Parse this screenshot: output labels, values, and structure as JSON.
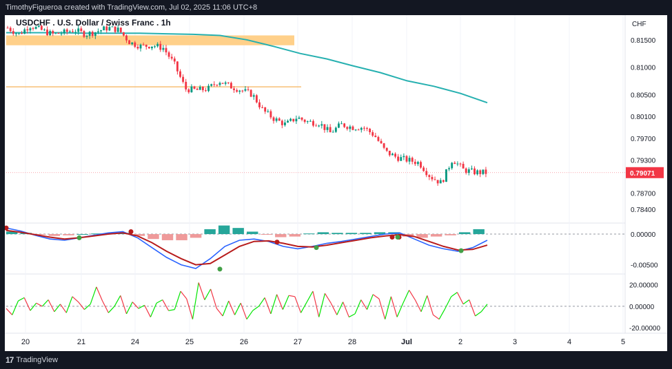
{
  "header": {
    "attribution": "TimothyFigueroa created with TradingView.com, Jul 02, 2025 11:06 UTC+8"
  },
  "footer": {
    "brand": "TradingView",
    "logo_icon": "tradingview-logo-icon"
  },
  "chart_data": {
    "type": "candlestick",
    "title": "USDCHF . U.S. Dollar / Swiss Franc . 1h",
    "currency_label": "CHF",
    "x_labels": [
      "20",
      "21",
      "24",
      "25",
      "26",
      "27",
      "28",
      "Jul",
      "2",
      "3",
      "4",
      "5"
    ],
    "price_axis": {
      "ticks": [
        "0.81500",
        "0.81000",
        "0.80500",
        "0.80100",
        "0.79700",
        "0.79300",
        "0.78700",
        "0.78400"
      ],
      "last_price": "0.79071",
      "ylim": [
        0.7825,
        0.8185
      ]
    },
    "close_path": [
      [
        "20",
        0.8172
      ],
      [
        "20",
        0.816
      ],
      [
        "20",
        0.8176
      ],
      [
        "20",
        0.8168
      ],
      [
        "20",
        0.816
      ],
      [
        "21",
        0.8163
      ],
      [
        "21",
        0.8168
      ],
      [
        "21",
        0.816
      ],
      [
        "21",
        0.8165
      ],
      [
        "21",
        0.8172
      ],
      [
        "24",
        0.8168
      ],
      [
        "24",
        0.8145
      ],
      [
        "24",
        0.8138
      ],
      [
        "24",
        0.814
      ],
      [
        "24",
        0.8135
      ],
      [
        "25",
        0.8105
      ],
      [
        "25",
        0.806
      ],
      [
        "25",
        0.8058
      ],
      [
        "25",
        0.806
      ],
      [
        "25",
        0.8075
      ],
      [
        "26",
        0.8065
      ],
      [
        "26",
        0.8058
      ],
      [
        "26",
        0.805
      ],
      [
        "26",
        0.802
      ],
      [
        "26",
        0.8005
      ],
      [
        "27",
        0.7995
      ],
      [
        "27",
        0.8008
      ],
      [
        "27",
        0.8
      ],
      [
        "27",
        0.7998
      ],
      [
        "27",
        0.798
      ],
      [
        "28",
        0.7995
      ],
      [
        "28",
        0.799
      ],
      [
        "28",
        0.799
      ],
      [
        "28",
        0.7975
      ],
      [
        "28",
        0.7945
      ],
      [
        "Jul",
        0.7935
      ],
      [
        "Jul",
        0.793
      ],
      [
        "Jul",
        0.7925
      ],
      [
        "Jul",
        0.79
      ],
      [
        "Jul",
        0.7888
      ],
      [
        "2",
        0.7932
      ],
      [
        "2",
        0.7912
      ],
      [
        "2",
        0.7908
      ],
      [
        "2",
        0.7907
      ]
    ],
    "moving_average": {
      "color": "#26b0b0",
      "values": [
        0.8163,
        0.8163,
        0.8163,
        0.8162,
        0.8162,
        0.8162,
        0.8161,
        0.816,
        0.8158,
        0.815,
        0.8138,
        0.8125,
        0.8115,
        0.8102,
        0.809,
        0.8075,
        0.8065,
        0.8052,
        0.8035
      ]
    },
    "supply_zone": {
      "from": 0.814,
      "to": 0.8158,
      "color": "#ffd08a"
    },
    "support_line": {
      "value": 0.8064,
      "color": "#f5b35a"
    },
    "macd": {
      "ticks": [
        "0.00000",
        "-0.00500"
      ],
      "ylim": [
        -0.0065,
        0.0018
      ],
      "macd_line": [
        0.001,
        0.0005,
        -0.0002,
        -0.0008,
        -0.001,
        -0.0006,
        -0.0002,
        0.0002,
        0.0004,
        -0.0006,
        -0.0022,
        -0.0038,
        -0.005,
        -0.0056,
        -0.004,
        -0.002,
        -0.001,
        -0.0008,
        -0.0012,
        -0.002,
        -0.0024,
        -0.002,
        -0.0015,
        -0.0012,
        -0.0008,
        -0.0004,
        0.0,
        0.0002,
        -0.0008,
        -0.0018,
        -0.0024,
        -0.0028,
        -0.0022,
        -0.001
      ],
      "signal_line": [
        0.0006,
        0.0003,
        -0.0001,
        -0.0005,
        -0.0008,
        -0.0006,
        -0.0003,
        0.0,
        0.0002,
        -0.0003,
        -0.0014,
        -0.0028,
        -0.004,
        -0.005,
        -0.0048,
        -0.0034,
        -0.002,
        -0.0012,
        -0.0011,
        -0.0015,
        -0.002,
        -0.0021,
        -0.0018,
        -0.0014,
        -0.001,
        -0.0006,
        -0.0003,
        -0.0001,
        -0.0004,
        -0.0012,
        -0.002,
        -0.0026,
        -0.0025,
        -0.0018
      ],
      "histogram": [
        0.0004,
        0.0002,
        -0.0001,
        -0.0003,
        -0.0002,
        0.0,
        0.0001,
        0.0002,
        0.0002,
        -0.0003,
        -0.0008,
        -0.001,
        -0.001,
        -0.0006,
        0.0008,
        0.0014,
        0.001,
        0.0004,
        -0.0001,
        -0.0005,
        -0.0004,
        0.0001,
        0.0003,
        0.0002,
        0.0002,
        0.0002,
        0.0003,
        0.0003,
        -0.0004,
        -0.0006,
        -0.0004,
        -0.0002,
        0.0003,
        0.0008
      ],
      "cross_points_bear": [
        0.001,
        0.0004,
        -0.0013,
        -0.0005,
        -0.0005
      ],
      "cross_points_bull": [
        -0.0006,
        -0.0057,
        -0.0022,
        -0.0005,
        -0.0027
      ]
    },
    "oscillator": {
      "ticks": [
        "20.00000",
        "0.00000",
        "-20.00000"
      ],
      "ylim": [
        -25,
        30
      ],
      "values": [
        -2,
        -8,
        5,
        8,
        -4,
        3,
        0,
        6,
        -5,
        2,
        -6,
        9,
        4,
        -3,
        2,
        18,
        5,
        -6,
        0,
        10,
        -7,
        4,
        -2,
        1,
        -10,
        3,
        6,
        -4,
        -3,
        14,
        7,
        -12,
        22,
        6,
        16,
        -2,
        -9,
        5,
        -8,
        3,
        -12,
        -4,
        0,
        8,
        -7,
        11,
        -3,
        10,
        9,
        -6,
        4,
        14,
        -10,
        12,
        3,
        -8,
        4,
        -10,
        -7,
        6,
        -3,
        11,
        7,
        -12,
        9,
        -10,
        3,
        15,
        6,
        -5,
        10,
        -8,
        -12,
        -2,
        9,
        13,
        2,
        6,
        -9,
        -5,
        2
      ]
    },
    "colors": {
      "up": "#089981",
      "down": "#f23645",
      "macd_line": "#2962ff",
      "signal_line": "#b71c1c",
      "signal_line_up": "#43a047",
      "osc_up": "#00e600",
      "osc_down": "#f23645"
    }
  }
}
